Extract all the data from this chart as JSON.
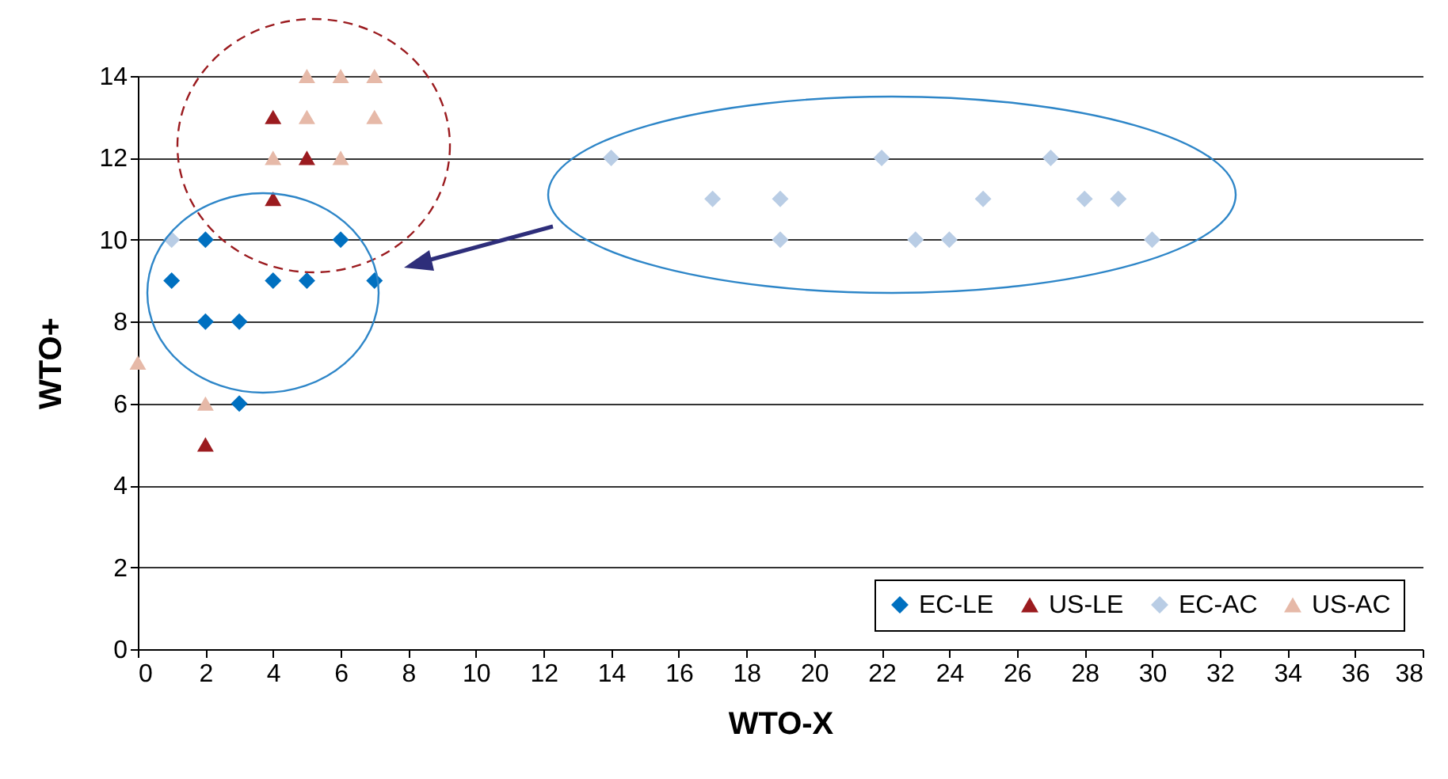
{
  "chart_data": {
    "type": "scatter",
    "xlabel": "WTO-X",
    "ylabel": "WTO+",
    "xlim": [
      0,
      38
    ],
    "xticks": [
      0,
      2,
      4,
      6,
      8,
      10,
      12,
      14,
      16,
      18,
      20,
      22,
      24,
      26,
      28,
      30,
      32,
      34,
      36,
      38
    ],
    "ylim": [
      0,
      14
    ],
    "yticks": [
      0,
      2,
      4,
      6,
      8,
      10,
      12,
      14
    ],
    "grid": "y",
    "legend": "bottom right",
    "series": [
      {
        "name": "EC-LE",
        "color": "#0070c0",
        "marker": "diamond",
        "x": [
          1,
          2,
          2,
          3,
          3,
          4,
          5,
          6,
          7
        ],
        "values": [
          9,
          10,
          8,
          8,
          6,
          9,
          9,
          10,
          9
        ]
      },
      {
        "name": "US-LE",
        "color": "#9b1b1f",
        "marker": "triangle",
        "x": [
          4,
          5,
          4,
          2
        ],
        "values": [
          13,
          12,
          11,
          5
        ]
      },
      {
        "name": "EC-AC",
        "color": "#b9cde5",
        "marker": "diamond",
        "x": [
          1,
          14,
          17,
          19,
          19,
          22,
          23,
          24,
          25,
          27,
          28,
          29,
          30
        ],
        "values": [
          10,
          12,
          11,
          11,
          10,
          12,
          10,
          10,
          11,
          12,
          11,
          11,
          10
        ]
      },
      {
        "name": "US-AC",
        "color": "#e6b9a8",
        "marker": "triangle",
        "x": [
          0,
          2,
          4,
          5,
          5,
          6,
          6,
          7,
          7
        ],
        "values": [
          7,
          6,
          12,
          13,
          14,
          14,
          12,
          14,
          13
        ]
      }
    ]
  }
}
